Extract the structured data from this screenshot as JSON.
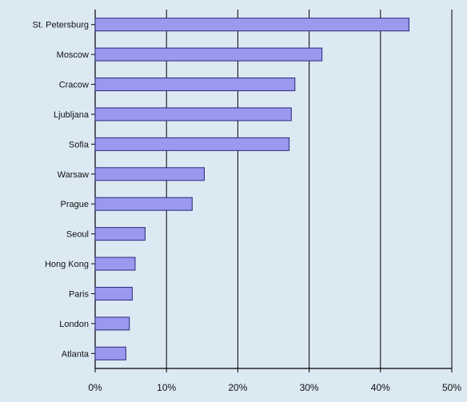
{
  "chart_data": {
    "type": "bar",
    "orientation": "horizontal",
    "categories": [
      "St. Petersburg",
      "Moscow",
      "Cracow",
      "Ljubljana",
      "Sofia",
      "Warsaw",
      "Prague",
      "Seoul",
      "Hong Kong",
      "Paris",
      "London",
      "Atlanta"
    ],
    "values": [
      44,
      31.8,
      28,
      27.5,
      27.2,
      15.3,
      13.6,
      7,
      5.6,
      5.2,
      4.8,
      4.3
    ],
    "unit": "%",
    "xlim": [
      0,
      50
    ],
    "x_ticks": [
      "0%",
      "10%",
      "20%",
      "30%",
      "40%",
      "50%"
    ],
    "grid": "vertical",
    "legend": "none",
    "colors": {
      "background": "#dbe9f3",
      "bar_fill": "#9999ee",
      "bar_stroke": "#2a2a7a",
      "gridline": "#000000"
    }
  }
}
